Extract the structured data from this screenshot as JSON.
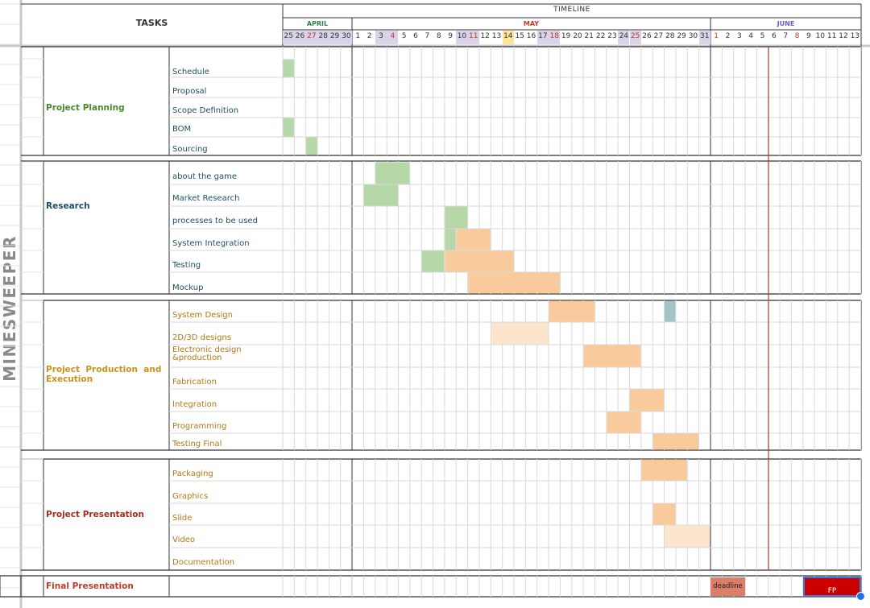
{
  "header": {
    "tasks_label": "TASKS",
    "timeline_label": "TIMELINE"
  },
  "project_title": "MINESWEEPER",
  "months": [
    {
      "label": "APRIL",
      "color": "#2e7d4f"
    },
    {
      "label": "MAY",
      "color": "#c0392b"
    },
    {
      "label": "JUNE",
      "color": "#6a5acd"
    }
  ],
  "days": [
    {
      "d": "25",
      "month": 0,
      "wknd": true
    },
    {
      "d": "26",
      "month": 0,
      "wknd": true
    },
    {
      "d": "27",
      "month": 0,
      "wknd": true,
      "red": true
    },
    {
      "d": "28",
      "month": 0,
      "wknd": true
    },
    {
      "d": "29",
      "month": 0,
      "wknd": true
    },
    {
      "d": "30",
      "month": 0,
      "wknd": true
    },
    {
      "d": "1",
      "month": 1
    },
    {
      "d": "2",
      "month": 1
    },
    {
      "d": "3",
      "month": 1,
      "wknd": true
    },
    {
      "d": "4",
      "month": 1,
      "wknd": true,
      "red": true
    },
    {
      "d": "5",
      "month": 1
    },
    {
      "d": "6",
      "month": 1
    },
    {
      "d": "7",
      "month": 1
    },
    {
      "d": "8",
      "month": 1
    },
    {
      "d": "9",
      "month": 1
    },
    {
      "d": "10",
      "month": 1,
      "wknd": true
    },
    {
      "d": "11",
      "month": 1,
      "wknd": true,
      "red": true
    },
    {
      "d": "12",
      "month": 1
    },
    {
      "d": "13",
      "month": 1
    },
    {
      "d": "14",
      "month": 1,
      "today": true
    },
    {
      "d": "15",
      "month": 1
    },
    {
      "d": "16",
      "month": 1
    },
    {
      "d": "17",
      "month": 1,
      "wknd": true
    },
    {
      "d": "18",
      "month": 1,
      "wknd": true,
      "red": true
    },
    {
      "d": "19",
      "month": 1
    },
    {
      "d": "20",
      "month": 1
    },
    {
      "d": "21",
      "month": 1
    },
    {
      "d": "22",
      "month": 1
    },
    {
      "d": "23",
      "month": 1
    },
    {
      "d": "24",
      "month": 1,
      "wknd": true
    },
    {
      "d": "25",
      "month": 1,
      "wknd": true,
      "red": true
    },
    {
      "d": "26",
      "month": 1
    },
    {
      "d": "27",
      "month": 1
    },
    {
      "d": "28",
      "month": 1
    },
    {
      "d": "29",
      "month": 1
    },
    {
      "d": "30",
      "month": 1
    },
    {
      "d": "31",
      "month": 1,
      "wknd": true
    },
    {
      "d": "1",
      "month": 2,
      "red": true
    },
    {
      "d": "2",
      "month": 2
    },
    {
      "d": "3",
      "month": 2
    },
    {
      "d": "4",
      "month": 2
    },
    {
      "d": "5",
      "month": 2
    },
    {
      "d": "6",
      "month": 2
    },
    {
      "d": "7",
      "month": 2
    },
    {
      "d": "8",
      "month": 2,
      "red": true
    },
    {
      "d": "9",
      "month": 2
    },
    {
      "d": "10",
      "month": 2
    },
    {
      "d": "11",
      "month": 2
    },
    {
      "d": "12",
      "month": 2
    },
    {
      "d": "13",
      "month": 2
    }
  ],
  "phases": [
    {
      "name": "Project Planning",
      "color": "#4a8a2a",
      "tasks": [
        "Schedule",
        "Proposal",
        "Scope Definition",
        "BOM",
        "Sourcing"
      ]
    },
    {
      "name": "Research",
      "color": "#1f4e63",
      "tasks": [
        "about the game",
        "Market Research",
        "processes to be used",
        "System Integration",
        "Testing",
        "Mockup"
      ]
    },
    {
      "name": "Project  Production  and  Execution",
      "color": "#c9921a",
      "tasks": [
        "System Design",
        "2D/3D designs",
        "Electronic design &production",
        "Fabrication",
        "Integration",
        "Programming",
        "Testing Final"
      ]
    },
    {
      "name": "Project Presentation",
      "color": "#a0301f",
      "tasks": [
        "Packaging",
        "Graphics",
        "Slide",
        "Video",
        "Documentation"
      ]
    }
  ],
  "final": {
    "name": "Final Presentation",
    "color": "#c0392b",
    "deadline_label": "deadline",
    "fp_label": "FP"
  },
  "colors": {
    "green": "#b6d7a8",
    "orange": "#f9cb9c",
    "light_orange": "#fce5cd",
    "teal": "#a2c4c9",
    "deadline": "#dd7e6b",
    "fp": "#cc0000",
    "grid": "#d9d9d9",
    "border": "#333333",
    "weekend_header": "#d9d2e9",
    "today": "#ffe599",
    "red_line": "#a61c00"
  }
}
